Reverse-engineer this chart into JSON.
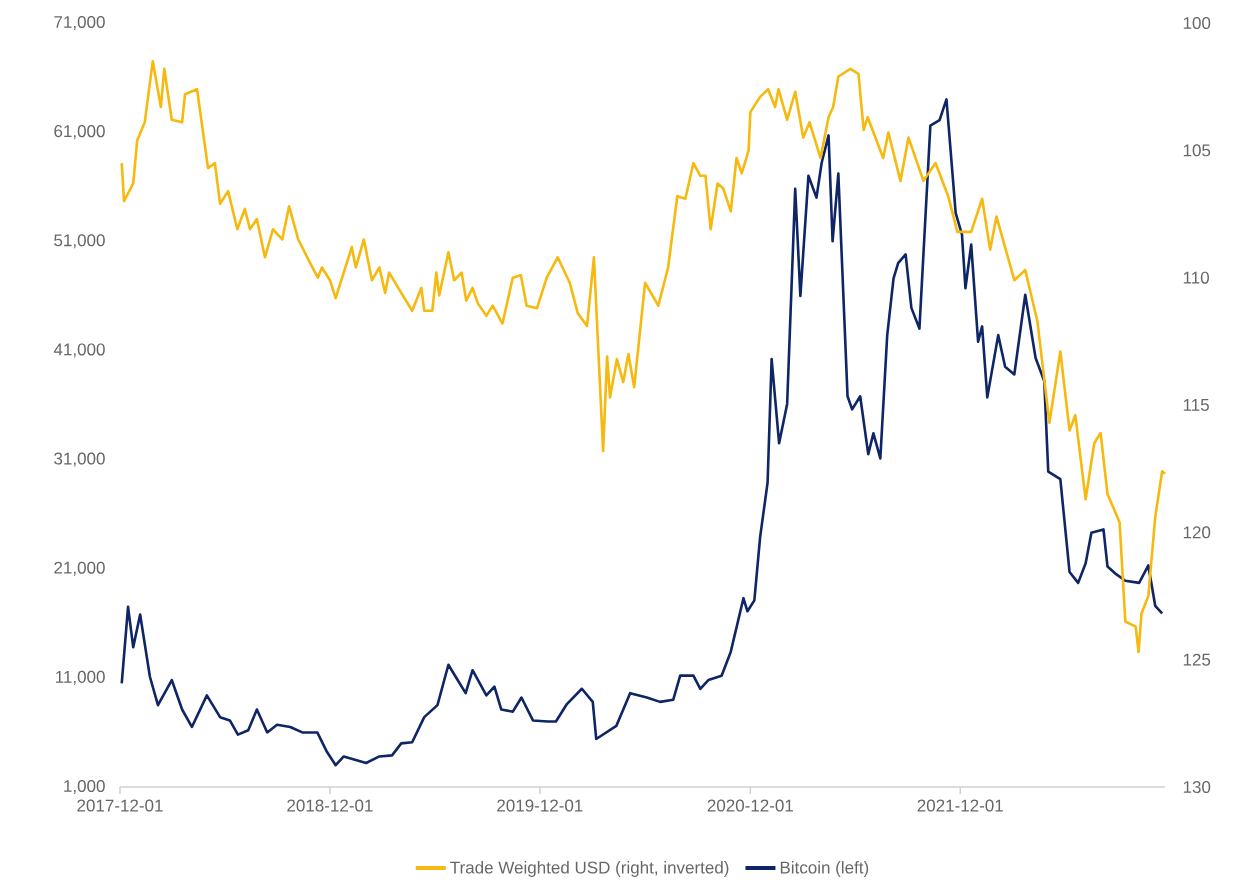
{
  "chart_data": {
    "type": "line",
    "legend": "bottom",
    "line_style": "solid",
    "marker": "none",
    "xlim": [
      "2017-12-01",
      "2022-11-22"
    ],
    "xticks": [
      "2017-12-01",
      "2018-12-01",
      "2019-12-01",
      "2020-12-01",
      "2021-12-01"
    ],
    "ylim": [
      1000,
      71000
    ],
    "yticks": [
      {
        "value": 1000,
        "label": "1,000"
      },
      {
        "value": 11000,
        "label": "11,000"
      },
      {
        "value": 21000,
        "label": "21,000"
      },
      {
        "value": 31000,
        "label": "31,000"
      },
      {
        "value": 41000,
        "label": "41,000"
      },
      {
        "value": 51000,
        "label": "51,000"
      },
      {
        "value": 61000,
        "label": "61,000"
      },
      {
        "value": 71000,
        "label": "71,000"
      }
    ],
    "y2lim": [
      130,
      100
    ],
    "y2ticks": [
      100,
      105,
      110,
      115,
      120,
      125,
      130
    ],
    "series": [
      {
        "name": "Trade Weighted USD (right, inverted)",
        "color": "#f6b90f",
        "axis": "y2",
        "x": [
          "2017-12-04",
          "2017-12-08",
          "2017-12-24",
          "2017-12-31",
          "2018-01-13",
          "2018-01-27",
          "2018-02-10",
          "2018-02-16",
          "2018-03-01",
          "2018-03-19",
          "2018-03-24",
          "2018-04-14",
          "2018-05-03",
          "2018-05-15",
          "2018-05-24",
          "2018-06-07",
          "2018-06-23",
          "2018-07-06",
          "2018-07-15",
          "2018-07-27",
          "2018-08-10",
          "2018-08-24",
          "2018-09-09",
          "2018-09-21",
          "2018-10-07",
          "2018-10-27",
          "2018-11-10",
          "2018-11-17",
          "2018-12-01",
          "2018-12-11",
          "2019-01-08",
          "2019-01-15",
          "2019-01-29",
          "2019-02-12",
          "2019-02-25",
          "2019-03-07",
          "2019-03-14",
          "2019-04-04",
          "2019-04-23",
          "2019-05-09",
          "2019-05-14",
          "2019-05-28",
          "2019-06-04",
          "2019-06-09",
          "2019-06-25",
          "2019-07-05",
          "2019-07-18",
          "2019-07-26",
          "2019-08-06",
          "2019-08-15",
          "2019-08-30",
          "2019-09-10",
          "2019-09-27",
          "2019-10-15",
          "2019-10-29",
          "2019-11-08",
          "2019-11-26",
          "2019-12-13",
          "2020-01-01",
          "2020-01-22",
          "2020-02-05",
          "2020-02-21",
          "2020-03-04",
          "2020-03-20",
          "2020-03-27",
          "2020-04-01",
          "2020-04-13",
          "2020-04-24",
          "2020-05-03",
          "2020-05-13",
          "2020-06-01",
          "2020-06-24",
          "2020-07-11",
          "2020-07-27",
          "2020-08-10",
          "2020-08-24",
          "2020-09-05",
          "2020-09-14",
          "2020-09-23",
          "2020-10-05",
          "2020-10-15",
          "2020-10-28",
          "2020-11-07",
          "2020-11-16",
          "2020-11-28",
          "2020-12-01",
          "2020-12-18",
          "2021-01-01",
          "2021-01-13",
          "2021-01-19",
          "2021-02-03",
          "2021-02-17",
          "2021-03-03",
          "2021-03-14",
          "2021-04-02",
          "2021-04-16",
          "2021-04-24",
          "2021-05-03",
          "2021-05-24",
          "2021-06-07",
          "2021-06-16",
          "2021-06-23",
          "2021-07-20",
          "2021-07-29",
          "2021-08-19",
          "2021-09-02",
          "2021-09-28",
          "2021-10-19",
          "2021-11-10",
          "2021-11-26",
          "2021-12-20",
          "2022-01-08",
          "2022-01-22",
          "2022-02-02",
          "2022-03-05",
          "2022-03-24",
          "2022-04-14",
          "2022-05-05",
          "2022-05-24",
          "2022-06-09",
          "2022-06-19",
          "2022-07-07",
          "2022-07-22",
          "2022-08-02",
          "2022-08-14",
          "2022-09-04",
          "2022-09-14",
          "2022-10-02",
          "2022-10-07",
          "2022-10-12",
          "2022-10-24",
          "2022-11-05",
          "2022-11-17",
          "2022-11-22"
        ],
        "values": [
          105.5,
          107.0,
          106.3,
          104.6,
          103.9,
          101.5,
          103.3,
          101.8,
          103.8,
          103.9,
          102.8,
          102.6,
          105.7,
          105.5,
          107.1,
          106.6,
          108.1,
          107.3,
          108.1,
          107.7,
          109.2,
          108.1,
          108.5,
          107.2,
          108.5,
          109.4,
          110.0,
          109.6,
          110.1,
          110.8,
          108.8,
          109.6,
          108.5,
          110.1,
          109.6,
          110.6,
          109.8,
          110.6,
          111.3,
          110.4,
          111.3,
          111.3,
          109.8,
          110.7,
          109.0,
          110.1,
          109.8,
          110.9,
          110.4,
          111.0,
          111.5,
          111.1,
          111.8,
          110.0,
          109.9,
          111.1,
          111.2,
          110.0,
          109.2,
          110.2,
          111.4,
          111.9,
          109.2,
          116.8,
          113.1,
          114.7,
          113.2,
          114.1,
          113.0,
          114.3,
          110.2,
          111.1,
          109.6,
          106.8,
          106.9,
          105.5,
          106.0,
          106.0,
          108.1,
          106.3,
          106.5,
          107.4,
          105.3,
          105.9,
          105.0,
          103.5,
          102.9,
          102.6,
          103.3,
          102.6,
          103.8,
          102.7,
          104.5,
          103.9,
          105.3,
          103.7,
          103.3,
          102.1,
          101.8,
          102.0,
          104.2,
          103.7,
          105.3,
          104.3,
          106.2,
          104.5,
          106.2,
          105.5,
          106.8,
          108.2,
          108.2,
          106.9,
          108.9,
          107.6,
          110.1,
          109.7,
          111.7,
          115.7,
          112.9,
          116.0,
          115.4,
          118.7,
          116.5,
          116.1,
          118.5,
          119.6,
          123.5,
          123.7,
          124.7,
          123.2,
          122.5,
          119.4,
          117.6,
          117.7
        ]
      },
      {
        "name": "Bitcoin (left)",
        "color": "#0e2566",
        "x": [
          "2017-12-04",
          "2017-12-15",
          "2017-12-24",
          "2018-01-05",
          "2018-01-22",
          "2018-02-05",
          "2018-03-01",
          "2018-03-19",
          "2018-04-05",
          "2018-05-01",
          "2018-05-24",
          "2018-06-10",
          "2018-06-24",
          "2018-07-12",
          "2018-07-27",
          "2018-08-14",
          "2018-08-31",
          "2018-09-23",
          "2018-10-14",
          "2018-11-09",
          "2018-11-26",
          "2018-12-11",
          "2018-12-25",
          "2019-02-02",
          "2019-02-25",
          "2019-03-19",
          "2019-04-04",
          "2019-04-23",
          "2019-05-14",
          "2019-06-06",
          "2019-06-25",
          "2019-07-11",
          "2019-07-25",
          "2019-08-06",
          "2019-08-30",
          "2019-09-13",
          "2019-09-25",
          "2019-10-15",
          "2019-10-30",
          "2019-11-19",
          "2019-12-15",
          "2019-12-29",
          "2020-01-17",
          "2020-02-12",
          "2020-03-02",
          "2020-03-08",
          "2020-04-12",
          "2020-05-06",
          "2020-06-04",
          "2020-06-27",
          "2020-07-20",
          "2020-08-01",
          "2020-08-24",
          "2020-09-05",
          "2020-09-19",
          "2020-10-12",
          "2020-10-28",
          "2020-11-19",
          "2020-11-26",
          "2020-12-08",
          "2020-12-18",
          "2020-12-31",
          "2021-01-07",
          "2021-01-20",
          "2021-02-03",
          "2021-02-17",
          "2021-02-26",
          "2021-03-12",
          "2021-03-26",
          "2021-04-04",
          "2021-04-16",
          "2021-04-23",
          "2021-05-03",
          "2021-05-19",
          "2021-05-27",
          "2021-06-10",
          "2021-06-24",
          "2021-07-03",
          "2021-07-15",
          "2021-07-27",
          "2021-08-07",
          "2021-08-15",
          "2021-08-28",
          "2021-09-07",
          "2021-09-21",
          "2021-10-10",
          "2021-10-26",
          "2021-11-07",
          "2021-11-23",
          "2021-12-04",
          "2021-12-10",
          "2021-12-20",
          "2022-01-01",
          "2022-01-08",
          "2022-01-17",
          "2022-02-05",
          "2022-02-17",
          "2022-03-05",
          "2022-03-24",
          "2022-04-11",
          "2022-04-26",
          "2022-05-03",
          "2022-05-24",
          "2022-06-09",
          "2022-06-24",
          "2022-07-07",
          "2022-07-17",
          "2022-08-07",
          "2022-08-14",
          "2022-08-29",
          "2022-09-14",
          "2022-10-08",
          "2022-10-24",
          "2022-11-05",
          "2022-11-17"
        ],
        "values": [
          10500,
          17500,
          13800,
          16800,
          11100,
          8500,
          10800,
          8100,
          6500,
          9400,
          7400,
          7100,
          5800,
          6200,
          8100,
          6000,
          6700,
          6500,
          6000,
          6000,
          4200,
          3000,
          3800,
          3200,
          3800,
          3900,
          5000,
          5100,
          7400,
          8500,
          12200,
          10800,
          9600,
          11700,
          9400,
          10200,
          8100,
          7900,
          9200,
          7100,
          7000,
          7000,
          8600,
          10000,
          8800,
          5400,
          6600,
          9600,
          9200,
          8800,
          9000,
          11200,
          11200,
          10000,
          10800,
          11200,
          13400,
          18300,
          17100,
          18100,
          23900,
          28900,
          40200,
          32500,
          36100,
          55800,
          46000,
          57000,
          55000,
          58200,
          60700,
          51000,
          57200,
          36800,
          35600,
          36800,
          31500,
          33400,
          31100,
          42400,
          47600,
          49000,
          49800,
          44900,
          43000,
          61600,
          62100,
          64000,
          53600,
          51600,
          46700,
          50700,
          41800,
          43200,
          36700,
          42400,
          39500,
          38800,
          46100,
          40300,
          38200,
          29900,
          29200,
          20700,
          19700,
          21500,
          24300,
          24600,
          21200,
          20500,
          19900,
          19700,
          21300,
          17600,
          16900
        ]
      }
    ]
  }
}
